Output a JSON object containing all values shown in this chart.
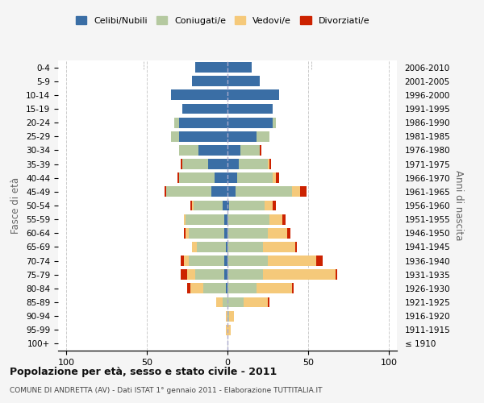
{
  "age_groups": [
    "100+",
    "95-99",
    "90-94",
    "85-89",
    "80-84",
    "75-79",
    "70-74",
    "65-69",
    "60-64",
    "55-59",
    "50-54",
    "45-49",
    "40-44",
    "35-39",
    "30-34",
    "25-29",
    "20-24",
    "15-19",
    "10-14",
    "5-9",
    "0-4"
  ],
  "birth_years": [
    "≤ 1910",
    "1911-1915",
    "1916-1920",
    "1921-1925",
    "1926-1930",
    "1931-1935",
    "1936-1940",
    "1941-1945",
    "1946-1950",
    "1951-1955",
    "1956-1960",
    "1961-1965",
    "1966-1970",
    "1971-1975",
    "1976-1980",
    "1981-1985",
    "1986-1990",
    "1991-1995",
    "1996-2000",
    "2001-2005",
    "2006-2010"
  ],
  "colors": {
    "celibi": "#3a6ea5",
    "coniugati": "#b5c9a0",
    "vedovi": "#f5c97a",
    "divorziati": "#cc2200"
  },
  "maschi": {
    "celibi": [
      0,
      0,
      0,
      0,
      1,
      2,
      2,
      1,
      2,
      2,
      3,
      10,
      8,
      12,
      18,
      30,
      30,
      28,
      35,
      22,
      20
    ],
    "coniugati": [
      0,
      0,
      0,
      3,
      14,
      18,
      22,
      18,
      22,
      24,
      18,
      28,
      22,
      16,
      12,
      5,
      3,
      0,
      0,
      0,
      0
    ],
    "vedovi": [
      0,
      1,
      1,
      4,
      8,
      5,
      3,
      3,
      2,
      1,
      1,
      0,
      0,
      0,
      0,
      0,
      0,
      0,
      0,
      0,
      0
    ],
    "divorziati": [
      0,
      0,
      0,
      0,
      2,
      4,
      2,
      0,
      1,
      0,
      1,
      1,
      1,
      1,
      0,
      0,
      0,
      0,
      0,
      0,
      0
    ]
  },
  "femmine": {
    "celibi": [
      0,
      0,
      0,
      0,
      0,
      0,
      0,
      0,
      0,
      0,
      1,
      5,
      6,
      7,
      8,
      18,
      28,
      28,
      32,
      20,
      15
    ],
    "coniugati": [
      0,
      0,
      1,
      10,
      18,
      22,
      25,
      22,
      25,
      26,
      22,
      35,
      22,
      18,
      12,
      8,
      2,
      0,
      0,
      0,
      0
    ],
    "vedovi": [
      0,
      2,
      3,
      15,
      22,
      45,
      30,
      20,
      12,
      8,
      5,
      5,
      2,
      1,
      0,
      0,
      0,
      0,
      0,
      0,
      0
    ],
    "divorziati": [
      0,
      0,
      0,
      1,
      1,
      1,
      4,
      1,
      2,
      2,
      2,
      4,
      2,
      1,
      1,
      0,
      0,
      0,
      0,
      0,
      0
    ]
  },
  "xlim": [
    -105,
    105
  ],
  "xticks": [
    -100,
    -50,
    0,
    50,
    100
  ],
  "xticklabels": [
    "100",
    "50",
    "0",
    "50",
    "100"
  ],
  "title": "Popolazione per età, sesso e stato civile - 2011",
  "subtitle": "COMUNE DI ANDRETTA (AV) - Dati ISTAT 1° gennaio 2011 - Elaborazione TUTTITALIA.IT",
  "ylabel_left": "Fasce di età",
  "ylabel_right": "Anni di nascita",
  "bg_color": "#f5f5f5",
  "plot_bg": "#ffffff",
  "grid_color": "#cccccc"
}
